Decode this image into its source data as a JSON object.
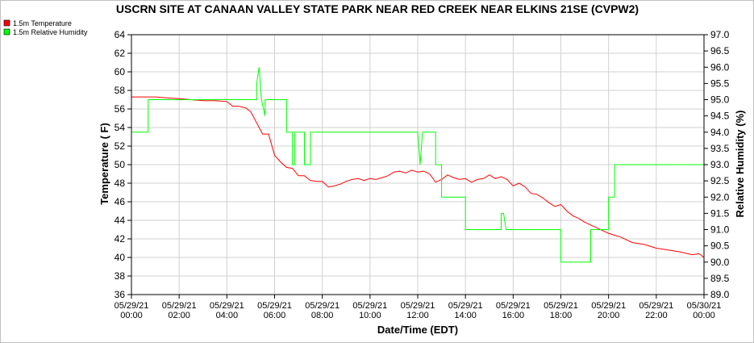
{
  "chart_data": {
    "type": "line",
    "title": "USCRN SITE AT CANAAN VALLEY STATE PARK NEAR RED CREEK NEAR ELKINS 21SE (CVPW2)",
    "xlabel": "Date/Time (EDT)",
    "ylabel": "Temperature ( F)",
    "y2label": "Relative Humidity (%)",
    "xlim": [
      0,
      24
    ],
    "ylim": [
      36,
      64
    ],
    "y2lim": [
      89.0,
      97.0
    ],
    "grid": true,
    "legend_placement": "top-left",
    "x_ticks": [
      {
        "date": "05/29/21",
        "time": "00:00"
      },
      {
        "date": "05/29/21",
        "time": "02:00"
      },
      {
        "date": "05/29/21",
        "time": "04:00"
      },
      {
        "date": "05/29/21",
        "time": "06:00"
      },
      {
        "date": "05/29/21",
        "time": "08:00"
      },
      {
        "date": "05/29/21",
        "time": "10:00"
      },
      {
        "date": "05/29/21",
        "time": "12:00"
      },
      {
        "date": "05/29/21",
        "time": "14:00"
      },
      {
        "date": "05/29/21",
        "time": "16:00"
      },
      {
        "date": "05/29/21",
        "time": "18:00"
      },
      {
        "date": "05/29/21",
        "time": "20:00"
      },
      {
        "date": "05/29/21",
        "time": "22:00"
      },
      {
        "date": "05/30/21",
        "time": "00:00"
      }
    ],
    "y_ticks": [
      "36",
      "38",
      "40",
      "42",
      "44",
      "46",
      "48",
      "50",
      "52",
      "54",
      "56",
      "58",
      "60",
      "62",
      "64"
    ],
    "y2_ticks": [
      "89.0",
      "89.5",
      "90.0",
      "90.5",
      "91.0",
      "91.5",
      "92.0",
      "92.5",
      "93.0",
      "93.5",
      "94.0",
      "94.5",
      "95.0",
      "95.5",
      "96.0",
      "96.5",
      "97.0"
    ],
    "series": [
      {
        "name": "1.5m Temperature",
        "color": "#ff0000",
        "axis": "left",
        "points": [
          [
            0.0,
            57.3
          ],
          [
            0.5,
            57.3
          ],
          [
            1.0,
            57.3
          ],
          [
            1.5,
            57.2
          ],
          [
            2.0,
            57.1
          ],
          [
            2.5,
            57.0
          ],
          [
            3.0,
            56.9
          ],
          [
            3.5,
            56.9
          ],
          [
            4.0,
            56.8
          ],
          [
            4.25,
            56.3
          ],
          [
            4.5,
            56.3
          ],
          [
            4.8,
            56.1
          ],
          [
            5.0,
            55.7
          ],
          [
            5.25,
            54.5
          ],
          [
            5.5,
            53.3
          ],
          [
            5.75,
            53.3
          ],
          [
            6.0,
            51.0
          ],
          [
            6.25,
            50.3
          ],
          [
            6.5,
            49.7
          ],
          [
            6.75,
            49.6
          ],
          [
            7.0,
            48.8
          ],
          [
            7.25,
            48.8
          ],
          [
            7.5,
            48.3
          ],
          [
            7.75,
            48.2
          ],
          [
            8.0,
            48.2
          ],
          [
            8.25,
            47.6
          ],
          [
            8.5,
            47.7
          ],
          [
            8.75,
            47.9
          ],
          [
            9.0,
            48.2
          ],
          [
            9.25,
            48.4
          ],
          [
            9.5,
            48.5
          ],
          [
            9.75,
            48.3
          ],
          [
            10.0,
            48.5
          ],
          [
            10.25,
            48.4
          ],
          [
            10.5,
            48.6
          ],
          [
            10.75,
            48.8
          ],
          [
            11.0,
            49.2
          ],
          [
            11.25,
            49.3
          ],
          [
            11.5,
            49.1
          ],
          [
            11.75,
            49.4
          ],
          [
            12.0,
            49.2
          ],
          [
            12.25,
            49.3
          ],
          [
            12.5,
            49.0
          ],
          [
            12.75,
            48.1
          ],
          [
            13.0,
            48.4
          ],
          [
            13.25,
            48.9
          ],
          [
            13.5,
            48.6
          ],
          [
            13.75,
            48.4
          ],
          [
            14.0,
            48.5
          ],
          [
            14.25,
            48.1
          ],
          [
            14.5,
            48.4
          ],
          [
            14.75,
            48.5
          ],
          [
            15.0,
            48.9
          ],
          [
            15.25,
            48.5
          ],
          [
            15.5,
            48.7
          ],
          [
            15.75,
            48.4
          ],
          [
            16.0,
            47.7
          ],
          [
            16.25,
            48.0
          ],
          [
            16.5,
            47.6
          ],
          [
            16.75,
            46.9
          ],
          [
            17.0,
            46.8
          ],
          [
            17.25,
            46.4
          ],
          [
            17.5,
            45.9
          ],
          [
            17.75,
            45.5
          ],
          [
            18.0,
            45.7
          ],
          [
            18.25,
            45.0
          ],
          [
            18.5,
            44.5
          ],
          [
            18.75,
            44.2
          ],
          [
            19.0,
            43.8
          ],
          [
            19.25,
            43.5
          ],
          [
            19.5,
            43.2
          ],
          [
            19.75,
            42.9
          ],
          [
            20.0,
            42.6
          ],
          [
            20.5,
            42.2
          ],
          [
            21.0,
            41.6
          ],
          [
            21.5,
            41.4
          ],
          [
            22.0,
            41.0
          ],
          [
            22.5,
            40.8
          ],
          [
            23.0,
            40.6
          ],
          [
            23.5,
            40.3
          ],
          [
            23.8,
            40.4
          ],
          [
            24.0,
            40.0
          ]
        ]
      },
      {
        "name": "1.5m Relative Humidity",
        "color": "#00ff00",
        "axis": "right",
        "points": [
          [
            0.0,
            94.0
          ],
          [
            0.7,
            94.0
          ],
          [
            0.7,
            95.0
          ],
          [
            5.25,
            95.0
          ],
          [
            5.25,
            95.5
          ],
          [
            5.35,
            96.0
          ],
          [
            5.45,
            95.0
          ],
          [
            5.6,
            94.5
          ],
          [
            5.6,
            95.0
          ],
          [
            6.5,
            95.0
          ],
          [
            6.5,
            94.0
          ],
          [
            6.75,
            94.0
          ],
          [
            6.75,
            93.0
          ],
          [
            6.85,
            93.0
          ],
          [
            6.85,
            94.0
          ],
          [
            7.25,
            94.0
          ],
          [
            7.25,
            93.0
          ],
          [
            7.5,
            93.0
          ],
          [
            7.5,
            94.0
          ],
          [
            12.0,
            94.0
          ],
          [
            12.1,
            93.0
          ],
          [
            12.2,
            94.0
          ],
          [
            12.75,
            94.0
          ],
          [
            12.75,
            93.0
          ],
          [
            13.0,
            93.0
          ],
          [
            13.0,
            92.0
          ],
          [
            14.0,
            92.0
          ],
          [
            14.0,
            91.0
          ],
          [
            15.5,
            91.0
          ],
          [
            15.5,
            91.5
          ],
          [
            15.6,
            91.5
          ],
          [
            15.7,
            91.0
          ],
          [
            18.0,
            91.0
          ],
          [
            18.0,
            90.0
          ],
          [
            19.25,
            90.0
          ],
          [
            19.25,
            91.0
          ],
          [
            20.0,
            91.0
          ],
          [
            20.0,
            92.0
          ],
          [
            20.25,
            92.0
          ],
          [
            20.25,
            93.0
          ],
          [
            24.0,
            93.0
          ]
        ]
      }
    ]
  }
}
